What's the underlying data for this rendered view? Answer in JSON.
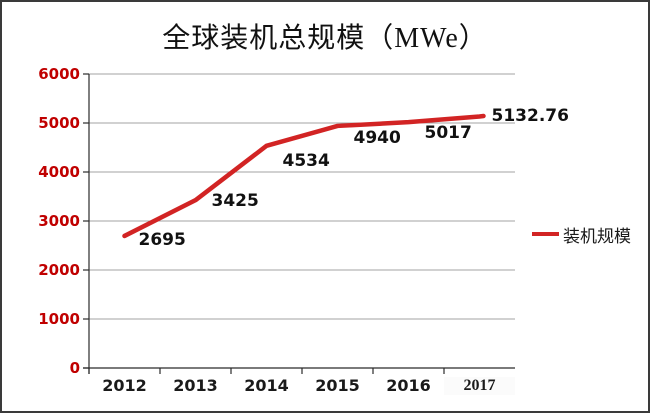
{
  "chart_data": {
    "type": "line",
    "title": "全球装机总规模（MWe）",
    "categories": [
      "2012",
      "2013",
      "2014",
      "2015",
      "2016",
      "2017"
    ],
    "series": [
      {
        "name": "装机规模",
        "values": [
          2695,
          3425,
          4534,
          4940,
          5017,
          5132.76
        ]
      }
    ],
    "data_labels": [
      "2695",
      "3425",
      "4534",
      "4940",
      "5017",
      "5132.76"
    ],
    "y_ticks": [
      0,
      1000,
      2000,
      3000,
      4000,
      5000,
      6000
    ],
    "ylim": [
      0,
      6000
    ],
    "xlabel": "",
    "ylabel": "",
    "grid": "horizontal",
    "legend": "装机规模",
    "legend_position": "right",
    "colors": {
      "line": "#d22424",
      "y_tick_label": "#c00000",
      "x_tick_label": "#1a1a1a",
      "data_label": "#111111",
      "gridline": "#a3a3a3",
      "axis": "#2b2b2b",
      "frame_border": "#3a3a3a"
    }
  }
}
